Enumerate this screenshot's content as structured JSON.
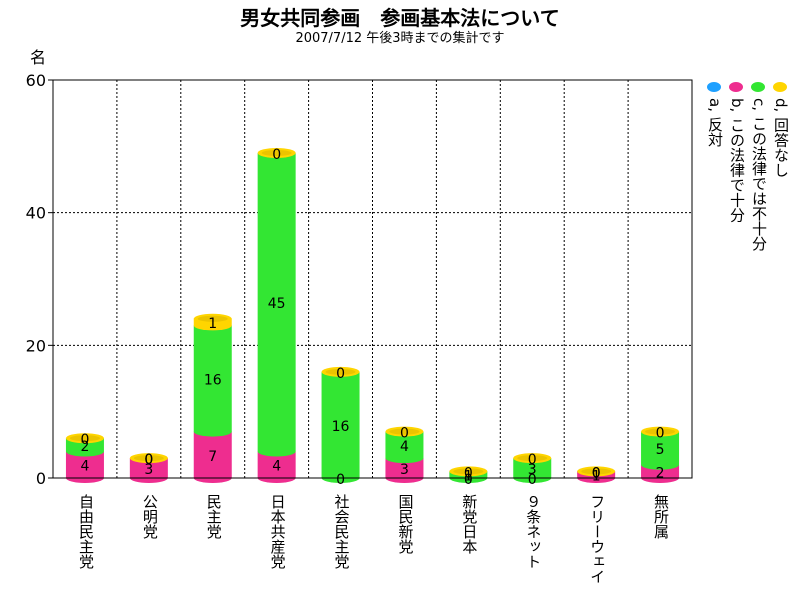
{
  "title": "男女共同参画　参画基本法について",
  "subtitle": "2007/7/12  午後3時までの集計です",
  "chart_data": {
    "type": "bar",
    "stacked": true,
    "title": "男女共同参画　参画基本法について",
    "subtitle": "2007/7/12  午後3時までの集計です",
    "ylabel": "名",
    "xlabel": "",
    "ylim": [
      0,
      60
    ],
    "yticks": [
      0,
      20,
      40,
      60
    ],
    "grid": true,
    "legend_position": "right",
    "categories": [
      "自由民主党",
      "公明党",
      "民主党",
      "日本共産党",
      "社会民主党",
      "国民新党",
      "新党日本",
      "９条ネット",
      "フリーウェイ",
      "無所属"
    ],
    "series": [
      {
        "name": "a, 反対",
        "color": "#1ea0ff",
        "values": [
          0,
          0,
          0,
          0,
          0,
          0,
          0,
          0,
          0,
          0
        ]
      },
      {
        "name": "b, この法律で十分",
        "color": "#ee2d8f",
        "values": [
          4,
          3,
          7,
          4,
          0,
          3,
          0,
          0,
          1,
          2
        ]
      },
      {
        "name": "c, この法律では不十分",
        "color": "#33e633",
        "values": [
          2,
          0,
          16,
          45,
          16,
          4,
          1,
          3,
          0,
          5
        ]
      },
      {
        "name": "d, 回答なし",
        "color": "#ffd500",
        "values": [
          0,
          0,
          1,
          0,
          0,
          0,
          0,
          0,
          0,
          0
        ]
      }
    ]
  }
}
